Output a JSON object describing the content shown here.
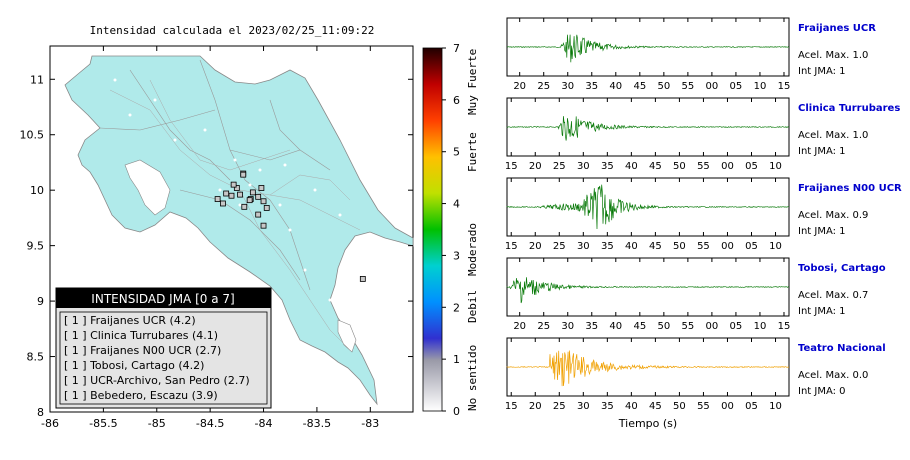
{
  "map": {
    "title": "Intensidad calculada el 2023/02/25_11:09:22",
    "xticks": [
      "-86",
      "-85.5",
      "-85",
      "-84.5",
      "-84",
      "-83.5",
      "-83"
    ],
    "yticks": [
      "11",
      "10.5",
      "10",
      "9.5",
      "9",
      "8.5",
      "8"
    ],
    "xlim": [
      -86,
      -82.6
    ],
    "ylim": [
      8,
      11.3
    ]
  },
  "colorbar": {
    "ticks": [
      "0",
      "1",
      "2",
      "3",
      "4",
      "5",
      "6",
      "7"
    ],
    "labels": [
      "No sentido",
      "Debil",
      "Moderado",
      "Fuerte",
      "Muy Fuerte"
    ]
  },
  "legend": {
    "title": "INTENSIDAD JMA [0 a 7]",
    "items": [
      "[ 1 ]  Fraijanes UCR (4.2)",
      "[ 1 ]  Clinica Turrubares (4.1)",
      "[ 1 ]  Fraijanes N00 UCR (2.7)",
      "[ 1 ]  Tobosi, Cartago (4.2)",
      "[ 1 ]  UCR-Archivo, San Pedro (2.7)",
      "[ 1 ]  Bebedero, Escazu (3.9)"
    ]
  },
  "traces": [
    {
      "station": "Fraijanes UCR",
      "acel": "Acel. Max. 1.0",
      "jma": "Int JMA: 1",
      "color": "#0a7a0a",
      "ticks": [
        "20",
        "25",
        "30",
        "35",
        "40",
        "45",
        "50",
        "55",
        "00",
        "05",
        "10",
        "15"
      ]
    },
    {
      "station": "Clinica Turrubares",
      "acel": "Acel. Max. 1.0",
      "jma": "Int JMA: 1",
      "color": "#0a7a0a",
      "ticks": [
        "15",
        "20",
        "25",
        "30",
        "35",
        "40",
        "45",
        "50",
        "55",
        "00",
        "05",
        "10"
      ]
    },
    {
      "station": "Fraijanes N00 UCR",
      "acel": "Acel. Max. 0.9",
      "jma": "Int JMA: 1",
      "color": "#0a7a0a",
      "ticks": [
        "15",
        "20",
        "25",
        "30",
        "35",
        "40",
        "45",
        "50",
        "55",
        "00",
        "05",
        "10"
      ]
    },
    {
      "station": "Tobosi, Cartago",
      "acel": "Acel. Max. 0.7",
      "jma": "Int JMA: 1",
      "color": "#0a7a0a",
      "ticks": [
        "20",
        "25",
        "30",
        "35",
        "40",
        "45",
        "50",
        "55",
        "00",
        "05",
        "10",
        "15"
      ]
    },
    {
      "station": "Teatro Nacional",
      "acel": "Acel. Max. 0.0",
      "jma": "Int JMA: 0",
      "color": "#f0a000",
      "ticks": [
        "15",
        "20",
        "25",
        "30",
        "35",
        "40",
        "45",
        "50",
        "55",
        "00",
        "05",
        "10"
      ]
    }
  ],
  "xlabel": "Tiempo (s)",
  "chart_data": {
    "type": "scatter",
    "title": "Intensidad calculada el 2023/02/25_11:09:22",
    "xlim": [
      -86,
      -82.6
    ],
    "ylim": [
      8,
      11.3
    ],
    "series": [
      {
        "name": "Fraijanes UCR",
        "x": -84.19,
        "y": 10.15,
        "value": 4.2
      },
      {
        "name": "Clinica Turrubares",
        "x": -84.43,
        "y": 9.92,
        "value": 4.1
      },
      {
        "name": "Fraijanes N00 UCR",
        "x": -84.19,
        "y": 10.14,
        "value": 2.7
      },
      {
        "name": "Tobosi, Cartago",
        "x": -83.97,
        "y": 9.84,
        "value": 4.2
      },
      {
        "name": "UCR-Archivo, San Pedro",
        "x": -84.05,
        "y": 9.94,
        "value": 2.7
      },
      {
        "name": "Bebedero, Escazu",
        "x": -84.13,
        "y": 9.91,
        "value": 3.9
      }
    ]
  }
}
